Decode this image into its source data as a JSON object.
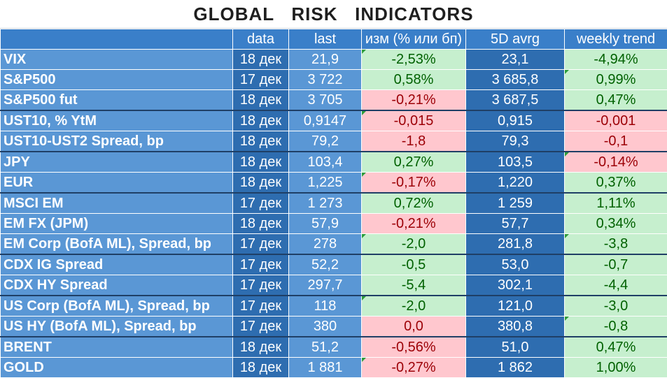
{
  "title": "GLOBAL   RISK   INDICATORS",
  "headers": [
    "",
    "data",
    "last",
    "изм (% или бп)",
    "5D avrg",
    "weekly trend"
  ],
  "rows": [
    {
      "name": "VIX",
      "date": "18 дек",
      "last": "21,9",
      "chg": "-2,53%",
      "chg_sign": "pos",
      "avg": "23,1",
      "trend": "-4,94%",
      "trend_sign": "pos"
    },
    {
      "name": "S&P500",
      "date": "17 дек",
      "last": "3 722",
      "chg": "0,58%",
      "chg_sign": "pos",
      "avg": "3 685,8",
      "trend": "0,99%",
      "trend_sign": "pos"
    },
    {
      "name": "S&P500 fut",
      "date": "18 дек",
      "last": "3 705",
      "chg": "-0,21%",
      "chg_sign": "neg",
      "avg": "3 687,5",
      "trend": "0,47%",
      "trend_sign": "pos"
    },
    {
      "name": "UST10, % YtM",
      "date": "18 дек",
      "last": "0,9147",
      "chg": "-0,015",
      "chg_sign": "neg",
      "avg": "0,915",
      "trend": "-0,001",
      "trend_sign": "neg",
      "group_start": true
    },
    {
      "name": "UST10-UST2 Spread, bp",
      "date": "18 дек",
      "last": "79,2",
      "chg": "-1,8",
      "chg_sign": "neg",
      "avg": "79,3",
      "trend": "-0,1",
      "trend_sign": "neg"
    },
    {
      "name": "JPY",
      "date": "18 дек",
      "last": "103,4",
      "chg": "0,27%",
      "chg_sign": "pos",
      "avg": "103,5",
      "trend": "-0,14%",
      "trend_sign": "neg",
      "group_start": true
    },
    {
      "name": "EUR",
      "date": "18 дек",
      "last": "1,225",
      "chg": "-0,17%",
      "chg_sign": "neg",
      "avg": "1,220",
      "trend": "0,37%",
      "trend_sign": "pos"
    },
    {
      "name": "MSCI EM",
      "date": "17 дек",
      "last": "1 273",
      "chg": "0,72%",
      "chg_sign": "pos",
      "avg": "1 259",
      "trend": "1,11%",
      "trend_sign": "pos",
      "group_start": true
    },
    {
      "name": "EM FX (JPM)",
      "date": "18 дек",
      "last": "57,9",
      "chg": "-0,21%",
      "chg_sign": "neg",
      "avg": "57,7",
      "trend": "0,34%",
      "trend_sign": "pos"
    },
    {
      "name": "EM Corp (BofA ML), Spread, bp",
      "date": "17 дек",
      "last": "278",
      "chg": "-2,0",
      "chg_sign": "pos",
      "avg": "281,8",
      "trend": "-3,8",
      "trend_sign": "pos"
    },
    {
      "name": "CDX IG Spread",
      "date": "17 дек",
      "last": "52,2",
      "chg": "-0,5",
      "chg_sign": "pos",
      "avg": "53,0",
      "trend": "-0,7",
      "trend_sign": "pos",
      "group_start": true
    },
    {
      "name": "CDX HY Spread",
      "date": "17 дек",
      "last": "297,7",
      "chg": "-5,4",
      "chg_sign": "pos",
      "avg": "302,1",
      "trend": "-4,4",
      "trend_sign": "pos"
    },
    {
      "name": "US Corp (BofA ML), Spread, bp",
      "date": "17 дек",
      "last": "118",
      "chg": "-2,0",
      "chg_sign": "pos",
      "avg": "121,0",
      "trend": "-3,0",
      "trend_sign": "pos",
      "group_start": true
    },
    {
      "name": "US HY (BofA ML), Spread, bp",
      "date": "17 дек",
      "last": "380",
      "chg": "0,0",
      "chg_sign": "neg",
      "avg": "380,8",
      "trend": "-0,8",
      "trend_sign": "pos"
    },
    {
      "name": "BRENT",
      "date": "18 дек",
      "last": "51,2",
      "chg": "-0,56%",
      "chg_sign": "neg",
      "avg": "51,0",
      "trend": "0,47%",
      "trend_sign": "pos",
      "group_start": true
    },
    {
      "name": "GOLD",
      "date": "18 дек",
      "last": "1 881",
      "chg": "-0,27%",
      "chg_sign": "neg",
      "avg": "1 862",
      "trend": "1,00%",
      "trend_sign": "pos"
    }
  ]
}
